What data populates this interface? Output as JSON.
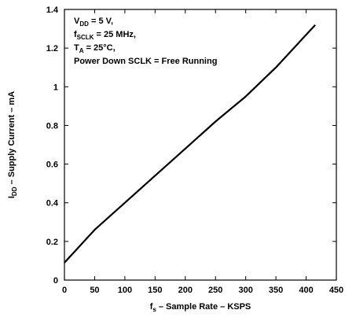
{
  "chart_data": {
    "type": "line",
    "title": "",
    "xlabel": {
      "main": "f",
      "sub": "s",
      "rest": " – Sample Rate – KSPS"
    },
    "ylabel": {
      "main": "I",
      "sub": "DD",
      "rest": " – Supply Current – mA"
    },
    "xlim": [
      0,
      450
    ],
    "ylim": [
      0,
      1.4
    ],
    "xticks": [
      0,
      50,
      100,
      150,
      200,
      250,
      300,
      350,
      400,
      450
    ],
    "yticks": [
      0,
      0.2,
      0.4,
      0.6,
      0.8,
      1,
      1.2,
      1.4
    ],
    "xtick_labels": [
      "0",
      "50",
      "100",
      "150",
      "200",
      "250",
      "300",
      "350",
      "400",
      "450"
    ],
    "ytick_labels": [
      "0",
      "0.2",
      "0.4",
      "0.6",
      "0.8",
      "1",
      "1.2",
      "1.4"
    ],
    "grid": false,
    "conditions": [
      {
        "main": "V",
        "sub": "DD",
        "rest": " = 5 V,"
      },
      {
        "main": "f",
        "sub": "SCLK",
        "rest": " = 25 MHz,"
      },
      {
        "main": "T",
        "sub": "A",
        "rest": " = 25°C,"
      },
      {
        "main": "Power Down SCLK = Free Running",
        "sub": "",
        "rest": ""
      }
    ],
    "series": [
      {
        "x": [
          0,
          50,
          100,
          150,
          200,
          250,
          300,
          350,
          415
        ],
        "y": [
          0.09,
          0.26,
          0.4,
          0.54,
          0.68,
          0.82,
          0.95,
          1.1,
          1.32
        ]
      }
    ]
  }
}
